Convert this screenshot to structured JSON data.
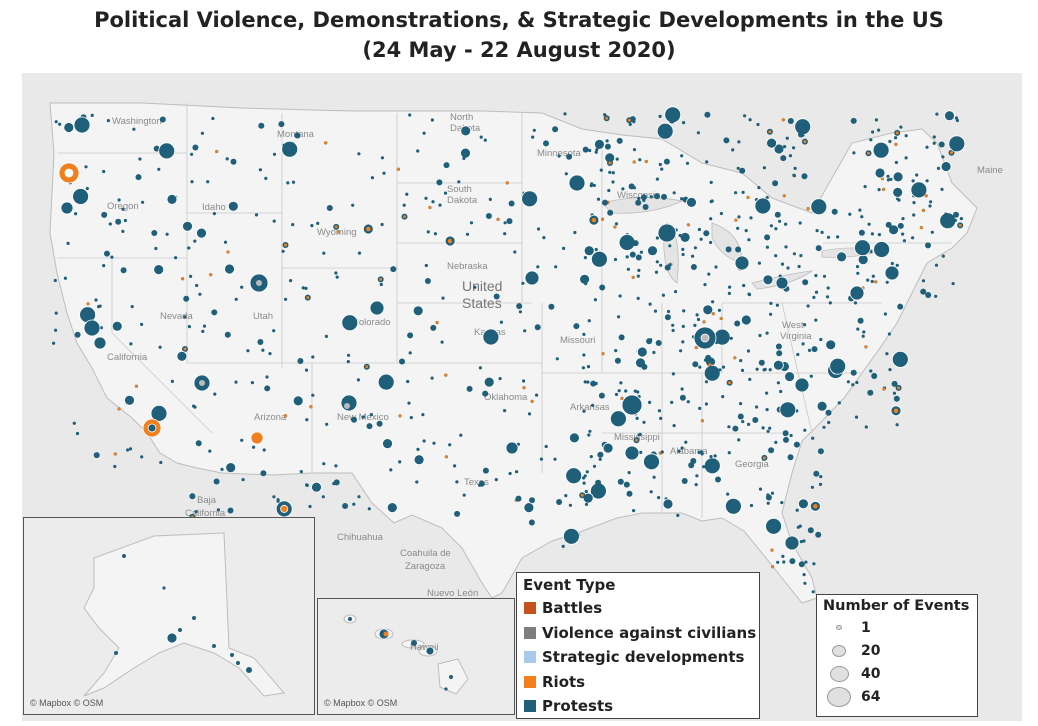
{
  "title": {
    "line1": "Political Violence, Demonstrations, & Strategic Developments in the US",
    "line2": "(24 May - 22 August 2020)"
  },
  "map_labels": {
    "washington": "Washington",
    "oregon": "Oregon",
    "idaho": "Idaho",
    "montana": "Montana",
    "wyoming": "Wyoming",
    "north_dakota_1": "North",
    "north_dakota_2": "Dakota",
    "south_dakota_1": "South",
    "south_dakota_2": "Dakota",
    "minnesota": "Minnesota",
    "wisconsin": "Wisconsin",
    "nebraska": "Nebraska",
    "nevada": "Nevada",
    "utah": "Utah",
    "colorado": "Colorado",
    "kansas": "Kansas",
    "missouri": "Missouri",
    "california": "California",
    "arizona": "Arizona",
    "new_mexico": "New Mexico",
    "oklahoma": "Oklahoma",
    "arkansas": "Arkansas",
    "texas": "Texas",
    "mississippi": "Mississippi",
    "alabama": "Alabama",
    "georgia": "Georgia",
    "west_virginia_1": "West",
    "west_virginia_2": "Virginia",
    "maine": "Maine",
    "united_states_1": "United",
    "united_states_2": "States",
    "baja_california_1": "Baja",
    "baja_california_2": "California",
    "chihuahua": "Chihuahua",
    "coahuila_1": "Coahuila de",
    "coahuila_2": "Zaragoza",
    "nuevo_leon": "Nuevo León",
    "hawaii": "Hawaii"
  },
  "attribution": {
    "alaska": "© Mapbox © OSM",
    "hawaii": "© Mapbox © OSM"
  },
  "legend_event_type": {
    "title": "Event Type",
    "items": [
      {
        "label": "Battles",
        "color": "#c6511b"
      },
      {
        "label": "Violence against civilians",
        "color": "#7e7e7e"
      },
      {
        "label": "Strategic developments",
        "color": "#a9c9ea"
      },
      {
        "label": "Riots",
        "color": "#f07f1c"
      },
      {
        "label": "Protests",
        "color": "#1f5f79"
      }
    ]
  },
  "legend_size": {
    "title": "Number of Events",
    "items": [
      {
        "label": "1",
        "value": 1
      },
      {
        "label": "20",
        "value": 20
      },
      {
        "label": "40",
        "value": 40
      },
      {
        "label": "64",
        "value": 64
      }
    ]
  },
  "colors": {
    "protests": "#1f5f79",
    "riots": "#f07f1c",
    "map_background": "#e9e9e9",
    "land": "#f2f2f2",
    "border": "#c4c4c4"
  }
}
